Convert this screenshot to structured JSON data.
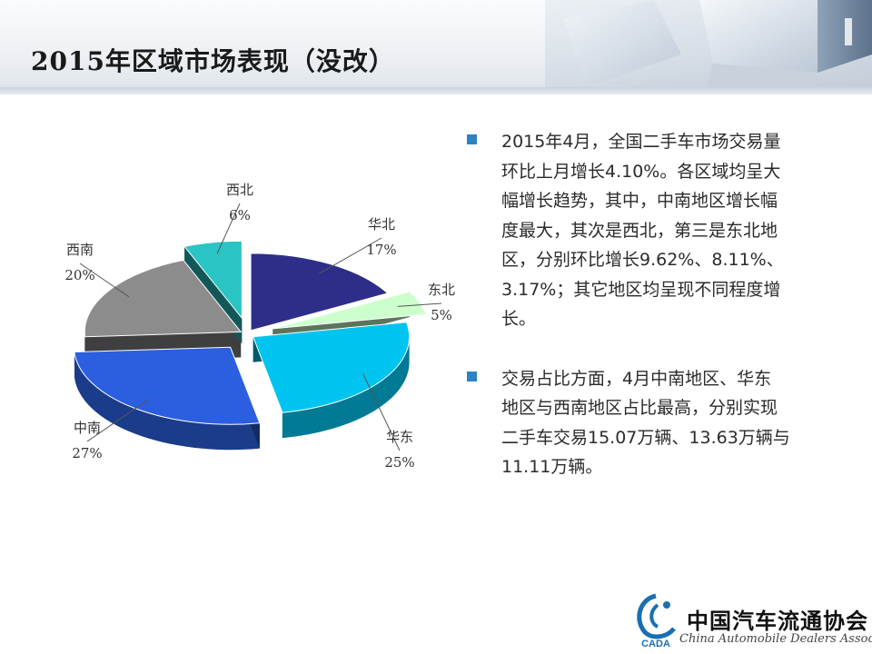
{
  "slide": {
    "title": "2015年区域市场表现（没改）"
  },
  "chart_data": {
    "type": "pie",
    "title": "",
    "slices": [
      {
        "name": "华北",
        "value": 17,
        "label": "17%",
        "color": "#2e2e8a",
        "exploded": false
      },
      {
        "name": "东北",
        "value": 5,
        "label": "5%",
        "color": "#ccffcc",
        "exploded": true
      },
      {
        "name": "华东",
        "value": 25,
        "label": "25%",
        "color": "#00c4f0",
        "exploded": false
      },
      {
        "name": "中南",
        "value": 27,
        "label": "27%",
        "color": "#2b5fe0",
        "exploded": true
      },
      {
        "name": "西南",
        "value": 20,
        "label": "20%",
        "color": "#8c8c8c",
        "exploded": false
      },
      {
        "name": "西北",
        "value": 6,
        "label": "6%",
        "color": "#2bc4c4",
        "exploded": true
      }
    ],
    "style": "3d-exploded",
    "legend": "none"
  },
  "bullets": [
    {
      "lines": [
        "2015年4月，全国二手车市场交易量",
        "环比上月增长4.10%。各区域均呈大",
        "幅增长趋势，其中，中南地区增长幅",
        "度最大，其次是西北，第三是东北地",
        "区，分别环比增长9.62%、8.11%、",
        "3.17%；其它地区均呈现不同程度增",
        "长。"
      ]
    },
    {
      "lines": [
        "交易占比方面，4月中南地区、华东",
        "地区与西南地区占比最高，分别实现",
        "二手车交易15.07万辆、13.63万辆与",
        "11.11万辆。"
      ]
    }
  ],
  "footer": {
    "logo_text": "CADA",
    "org_name": "中国汽车流通协会",
    "org_name_en": "China Automobile Dealers Association"
  },
  "colors": {
    "accent": "#2c83c3",
    "title_text": "#1a1a1a",
    "body_text": "#2b2b2b"
  }
}
